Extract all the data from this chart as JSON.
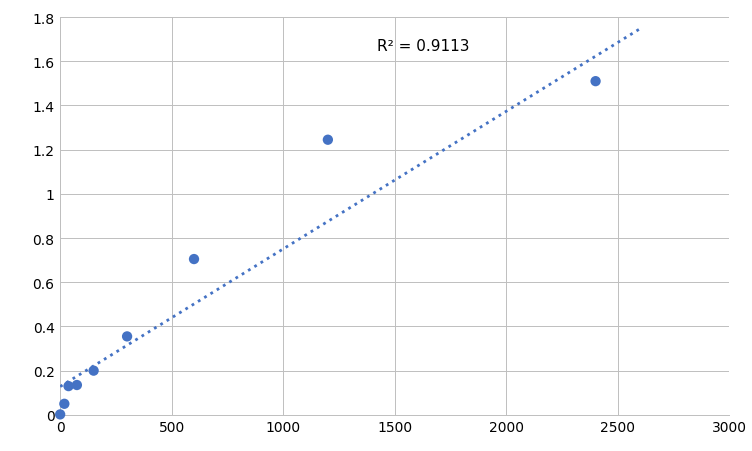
{
  "scatter_x": [
    0,
    18.75,
    37.5,
    75,
    150,
    300,
    600,
    1200,
    2400
  ],
  "scatter_y": [
    0.002,
    0.05,
    0.13,
    0.135,
    0.2,
    0.355,
    0.705,
    1.245,
    1.51
  ],
  "trendline_x0": 0,
  "trendline_x1": 2600,
  "trendline_slope": 0.000623,
  "trendline_intercept": 0.128,
  "r2_text": "R² = 0.9113",
  "r2_x": 1420,
  "r2_y": 1.67,
  "xlim": [
    0,
    3000
  ],
  "ylim": [
    0,
    1.8
  ],
  "xticks": [
    0,
    500,
    1000,
    1500,
    2000,
    2500,
    3000
  ],
  "yticks": [
    0,
    0.2,
    0.4,
    0.6,
    0.8,
    1.0,
    1.2,
    1.4,
    1.6,
    1.8
  ],
  "ytick_labels": [
    "0",
    "0.2",
    "0.4",
    "0.6",
    "0.8",
    "1",
    "1.2",
    "1.4",
    "1.6",
    "1.8"
  ],
  "scatter_color": "#4472C4",
  "trendline_color": "#4472C4",
  "background_color": "#ffffff",
  "grid_color": "#bfbfbf",
  "marker_size": 55,
  "figwidth": 7.52,
  "figheight": 4.52,
  "dpi": 100
}
